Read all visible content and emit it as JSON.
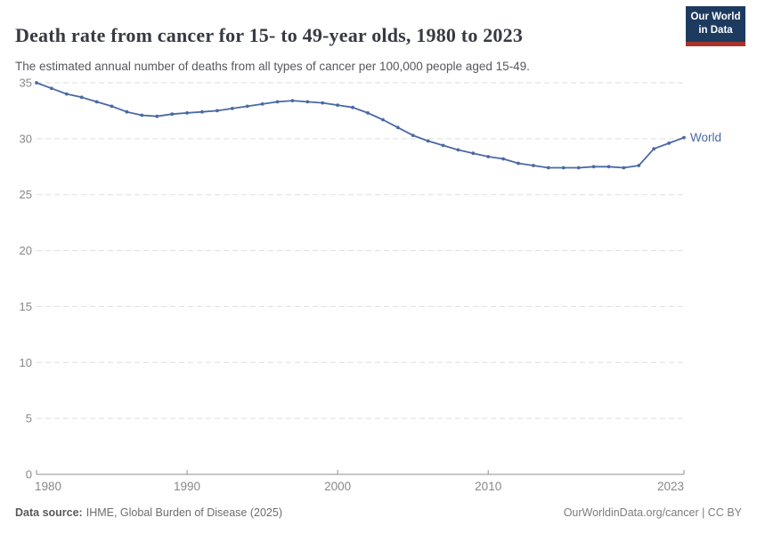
{
  "header": {
    "title": "Death rate from cancer for 15- to 49-year olds, 1980 to 2023",
    "subtitle": "The estimated annual number of deaths from all types of cancer per 100,000 people aged 15-49.",
    "logo": {
      "line1": "Our World",
      "line2": "in Data"
    }
  },
  "chart_data": {
    "type": "line",
    "title": "Death rate from cancer for 15- to 49-year olds, 1980 to 2023",
    "xlabel": "",
    "ylabel": "",
    "xlim": [
      1980,
      2023
    ],
    "ylim": [
      0,
      35
    ],
    "xticks": [
      1980,
      1990,
      2000,
      2010,
      2023
    ],
    "yticks": [
      0,
      5,
      10,
      15,
      20,
      25,
      30,
      35
    ],
    "grid": "horizontal-dashed",
    "legend": "end-of-line-label",
    "x": [
      1980,
      1981,
      1982,
      1983,
      1984,
      1985,
      1986,
      1987,
      1988,
      1989,
      1990,
      1991,
      1992,
      1993,
      1994,
      1995,
      1996,
      1997,
      1998,
      1999,
      2000,
      2001,
      2002,
      2003,
      2004,
      2005,
      2006,
      2007,
      2008,
      2009,
      2010,
      2011,
      2012,
      2013,
      2014,
      2015,
      2016,
      2017,
      2018,
      2019,
      2020,
      2021,
      2022,
      2023
    ],
    "series": [
      {
        "name": "World",
        "color": "#4a69a3",
        "values": [
          35.0,
          34.5,
          34.0,
          33.7,
          33.3,
          32.9,
          32.4,
          32.1,
          32.0,
          32.2,
          32.3,
          32.4,
          32.5,
          32.7,
          32.9,
          33.1,
          33.3,
          33.4,
          33.3,
          33.2,
          33.0,
          32.8,
          32.3,
          31.7,
          31.0,
          30.3,
          29.8,
          29.4,
          29.0,
          28.7,
          28.4,
          28.2,
          27.8,
          27.6,
          27.4,
          27.4,
          27.4,
          27.5,
          27.5,
          27.4,
          27.6,
          29.1,
          29.6,
          30.1
        ]
      }
    ]
  },
  "footer": {
    "source_label": "Data source:",
    "source_text": "IHME, Global Burden of Disease (2025)",
    "rights": "OurWorldinData.org/cancer | CC BY"
  },
  "colors": {
    "line": "#4a69a3",
    "gridline": "#dedede",
    "axis": "#8f8f8f",
    "tick_label": "#878787",
    "title_text": "#373a42",
    "logo_bg": "#1d3a5f",
    "logo_accent": "#a8332b"
  }
}
